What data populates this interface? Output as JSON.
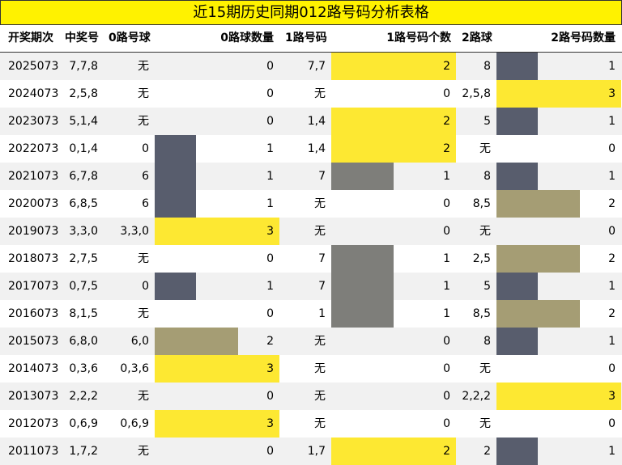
{
  "title": "近15期历史同期012路号码分析表格",
  "headers": {
    "period": "开奖期次",
    "numbers": "中奖号",
    "r0_balls": "0路号球",
    "r0_count": "0路球数量",
    "r1_balls": "1路号码",
    "r1_count": "1路号码个数",
    "r2_balls": "2路球",
    "r2_count": "2路号码数量"
  },
  "colors": {
    "count_1": "#585d6d",
    "count_2": "#a59d74",
    "count_3": "#fde832",
    "r1_count_1": "#7e7e7a",
    "r1_count_2": "#fde832"
  },
  "rows": [
    {
      "period": "2025073",
      "numbers": "7,7,8",
      "r0": "无",
      "r0_count": "0",
      "r1": "7,7",
      "r1_count": "2",
      "r2": "8",
      "r2_count": "1"
    },
    {
      "period": "2024073",
      "numbers": "2,5,8",
      "r0": "无",
      "r0_count": "0",
      "r1": "无",
      "r1_count": "0",
      "r2": "2,5,8",
      "r2_count": "3"
    },
    {
      "period": "2023073",
      "numbers": "5,1,4",
      "r0": "无",
      "r0_count": "0",
      "r1": "1,4",
      "r1_count": "2",
      "r2": "5",
      "r2_count": "1"
    },
    {
      "period": "2022073",
      "numbers": "0,1,4",
      "r0": "0",
      "r0_count": "1",
      "r1": "1,4",
      "r1_count": "2",
      "r2": "无",
      "r2_count": "0"
    },
    {
      "period": "2021073",
      "numbers": "6,7,8",
      "r0": "6",
      "r0_count": "1",
      "r1": "7",
      "r1_count": "1",
      "r2": "8",
      "r2_count": "1"
    },
    {
      "period": "2020073",
      "numbers": "6,8,5",
      "r0": "6",
      "r0_count": "1",
      "r1": "无",
      "r1_count": "0",
      "r2": "8,5",
      "r2_count": "2"
    },
    {
      "period": "2019073",
      "numbers": "3,3,0",
      "r0": "3,3,0",
      "r0_count": "3",
      "r1": "无",
      "r1_count": "0",
      "r2": "无",
      "r2_count": "0"
    },
    {
      "period": "2018073",
      "numbers": "2,7,5",
      "r0": "无",
      "r0_count": "0",
      "r1": "7",
      "r1_count": "1",
      "r2": "2,5",
      "r2_count": "2"
    },
    {
      "period": "2017073",
      "numbers": "0,7,5",
      "r0": "0",
      "r0_count": "1",
      "r1": "7",
      "r1_count": "1",
      "r2": "5",
      "r2_count": "1"
    },
    {
      "period": "2016073",
      "numbers": "8,1,5",
      "r0": "无",
      "r0_count": "0",
      "r1": "1",
      "r1_count": "1",
      "r2": "8,5",
      "r2_count": "2"
    },
    {
      "period": "2015073",
      "numbers": "6,8,0",
      "r0": "6,0",
      "r0_count": "2",
      "r1": "无",
      "r1_count": "0",
      "r2": "8",
      "r2_count": "1"
    },
    {
      "period": "2014073",
      "numbers": "0,3,6",
      "r0": "0,3,6",
      "r0_count": "3",
      "r1": "无",
      "r1_count": "0",
      "r2": "无",
      "r2_count": "0"
    },
    {
      "period": "2013073",
      "numbers": "2,2,2",
      "r0": "无",
      "r0_count": "0",
      "r1": "无",
      "r1_count": "0",
      "r2": "2,2,2",
      "r2_count": "3"
    },
    {
      "period": "2012073",
      "numbers": "0,6,9",
      "r0": "0,6,9",
      "r0_count": "3",
      "r1": "无",
      "r1_count": "0",
      "r2": "无",
      "r2_count": "0"
    },
    {
      "period": "2011073",
      "numbers": "1,7,2",
      "r0": "无",
      "r0_count": "0",
      "r1": "1,7",
      "r1_count": "2",
      "r2": "2",
      "r2_count": "1"
    }
  ]
}
